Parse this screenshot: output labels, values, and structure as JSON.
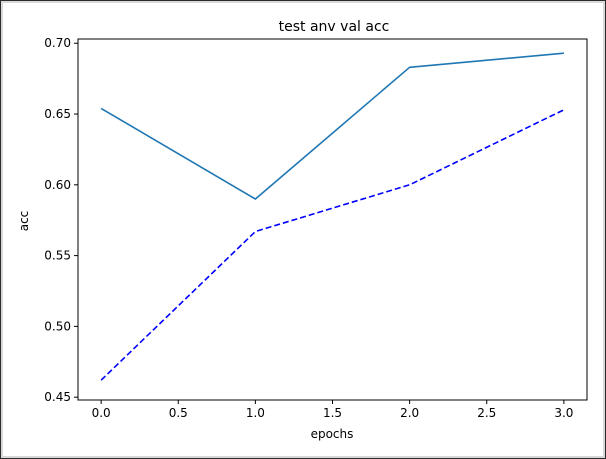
{
  "chart_data": {
    "type": "line",
    "title": "test anv val acc",
    "xlabel": "epochs",
    "ylabel": "acc",
    "xlim": [
      -0.15,
      3.15
    ],
    "ylim": [
      0.448,
      0.703
    ],
    "xticks": [
      0.0,
      0.5,
      1.0,
      1.5,
      2.0,
      2.5,
      3.0
    ],
    "xtick_labels": [
      "0.0",
      "0.5",
      "1.0",
      "1.5",
      "2.0",
      "2.5",
      "3.0"
    ],
    "yticks": [
      0.45,
      0.5,
      0.55,
      0.6,
      0.65,
      0.7
    ],
    "ytick_labels": [
      "0.45",
      "0.50",
      "0.55",
      "0.60",
      "0.65",
      "0.70"
    ],
    "grid": false,
    "legend": "none",
    "x": [
      0,
      1,
      2,
      3
    ],
    "series": [
      {
        "values": [
          0.654,
          0.59,
          0.683,
          0.693
        ],
        "color": "#1f77b4",
        "style": "solid"
      },
      {
        "values": [
          0.462,
          0.567,
          0.6,
          0.653
        ],
        "color": "#0000ff",
        "style": "dashed"
      }
    ]
  }
}
